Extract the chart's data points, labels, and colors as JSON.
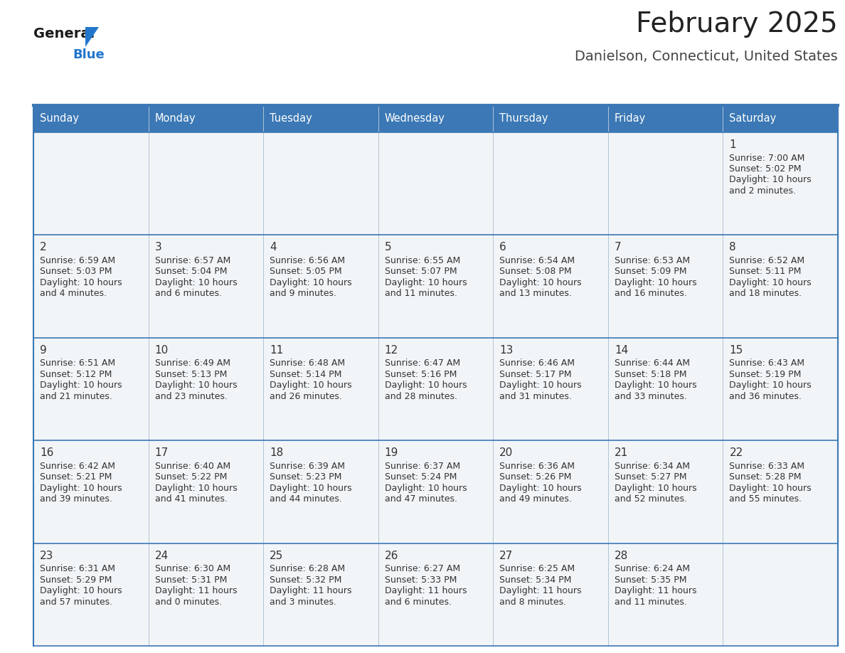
{
  "title": "February 2025",
  "subtitle": "Danielson, Connecticut, United States",
  "days_of_week": [
    "Sunday",
    "Monday",
    "Tuesday",
    "Wednesday",
    "Thursday",
    "Friday",
    "Saturday"
  ],
  "header_bg": "#3b78b5",
  "header_text": "#ffffff",
  "cell_bg": "#f2f5f8",
  "cell_bg_white": "#ffffff",
  "border_color": "#3b78b5",
  "day_num_color": "#333333",
  "text_color": "#333333",
  "title_color": "#222222",
  "subtitle_color": "#444444",
  "logo_general_color": "#1a1a1a",
  "logo_blue_color": "#2277cc",
  "calendar": [
    [
      null,
      null,
      null,
      null,
      null,
      null,
      {
        "day": 1,
        "sunrise": "7:00 AM",
        "sunset": "5:02 PM",
        "daylight1": "Daylight: 10 hours",
        "daylight2": "and 2 minutes."
      }
    ],
    [
      {
        "day": 2,
        "sunrise": "6:59 AM",
        "sunset": "5:03 PM",
        "daylight1": "Daylight: 10 hours",
        "daylight2": "and 4 minutes."
      },
      {
        "day": 3,
        "sunrise": "6:57 AM",
        "sunset": "5:04 PM",
        "daylight1": "Daylight: 10 hours",
        "daylight2": "and 6 minutes."
      },
      {
        "day": 4,
        "sunrise": "6:56 AM",
        "sunset": "5:05 PM",
        "daylight1": "Daylight: 10 hours",
        "daylight2": "and 9 minutes."
      },
      {
        "day": 5,
        "sunrise": "6:55 AM",
        "sunset": "5:07 PM",
        "daylight1": "Daylight: 10 hours",
        "daylight2": "and 11 minutes."
      },
      {
        "day": 6,
        "sunrise": "6:54 AM",
        "sunset": "5:08 PM",
        "daylight1": "Daylight: 10 hours",
        "daylight2": "and 13 minutes."
      },
      {
        "day": 7,
        "sunrise": "6:53 AM",
        "sunset": "5:09 PM",
        "daylight1": "Daylight: 10 hours",
        "daylight2": "and 16 minutes."
      },
      {
        "day": 8,
        "sunrise": "6:52 AM",
        "sunset": "5:11 PM",
        "daylight1": "Daylight: 10 hours",
        "daylight2": "and 18 minutes."
      }
    ],
    [
      {
        "day": 9,
        "sunrise": "6:51 AM",
        "sunset": "5:12 PM",
        "daylight1": "Daylight: 10 hours",
        "daylight2": "and 21 minutes."
      },
      {
        "day": 10,
        "sunrise": "6:49 AM",
        "sunset": "5:13 PM",
        "daylight1": "Daylight: 10 hours",
        "daylight2": "and 23 minutes."
      },
      {
        "day": 11,
        "sunrise": "6:48 AM",
        "sunset": "5:14 PM",
        "daylight1": "Daylight: 10 hours",
        "daylight2": "and 26 minutes."
      },
      {
        "day": 12,
        "sunrise": "6:47 AM",
        "sunset": "5:16 PM",
        "daylight1": "Daylight: 10 hours",
        "daylight2": "and 28 minutes."
      },
      {
        "day": 13,
        "sunrise": "6:46 AM",
        "sunset": "5:17 PM",
        "daylight1": "Daylight: 10 hours",
        "daylight2": "and 31 minutes."
      },
      {
        "day": 14,
        "sunrise": "6:44 AM",
        "sunset": "5:18 PM",
        "daylight1": "Daylight: 10 hours",
        "daylight2": "and 33 minutes."
      },
      {
        "day": 15,
        "sunrise": "6:43 AM",
        "sunset": "5:19 PM",
        "daylight1": "Daylight: 10 hours",
        "daylight2": "and 36 minutes."
      }
    ],
    [
      {
        "day": 16,
        "sunrise": "6:42 AM",
        "sunset": "5:21 PM",
        "daylight1": "Daylight: 10 hours",
        "daylight2": "and 39 minutes."
      },
      {
        "day": 17,
        "sunrise": "6:40 AM",
        "sunset": "5:22 PM",
        "daylight1": "Daylight: 10 hours",
        "daylight2": "and 41 minutes."
      },
      {
        "day": 18,
        "sunrise": "6:39 AM",
        "sunset": "5:23 PM",
        "daylight1": "Daylight: 10 hours",
        "daylight2": "and 44 minutes."
      },
      {
        "day": 19,
        "sunrise": "6:37 AM",
        "sunset": "5:24 PM",
        "daylight1": "Daylight: 10 hours",
        "daylight2": "and 47 minutes."
      },
      {
        "day": 20,
        "sunrise": "6:36 AM",
        "sunset": "5:26 PM",
        "daylight1": "Daylight: 10 hours",
        "daylight2": "and 49 minutes."
      },
      {
        "day": 21,
        "sunrise": "6:34 AM",
        "sunset": "5:27 PM",
        "daylight1": "Daylight: 10 hours",
        "daylight2": "and 52 minutes."
      },
      {
        "day": 22,
        "sunrise": "6:33 AM",
        "sunset": "5:28 PM",
        "daylight1": "Daylight: 10 hours",
        "daylight2": "and 55 minutes."
      }
    ],
    [
      {
        "day": 23,
        "sunrise": "6:31 AM",
        "sunset": "5:29 PM",
        "daylight1": "Daylight: 10 hours",
        "daylight2": "and 57 minutes."
      },
      {
        "day": 24,
        "sunrise": "6:30 AM",
        "sunset": "5:31 PM",
        "daylight1": "Daylight: 11 hours",
        "daylight2": "and 0 minutes."
      },
      {
        "day": 25,
        "sunrise": "6:28 AM",
        "sunset": "5:32 PM",
        "daylight1": "Daylight: 11 hours",
        "daylight2": "and 3 minutes."
      },
      {
        "day": 26,
        "sunrise": "6:27 AM",
        "sunset": "5:33 PM",
        "daylight1": "Daylight: 11 hours",
        "daylight2": "and 6 minutes."
      },
      {
        "day": 27,
        "sunrise": "6:25 AM",
        "sunset": "5:34 PM",
        "daylight1": "Daylight: 11 hours",
        "daylight2": "and 8 minutes."
      },
      {
        "day": 28,
        "sunrise": "6:24 AM",
        "sunset": "5:35 PM",
        "daylight1": "Daylight: 11 hours",
        "daylight2": "and 11 minutes."
      },
      null
    ]
  ],
  "fig_width": 11.88,
  "fig_height": 9.18,
  "dpi": 100
}
